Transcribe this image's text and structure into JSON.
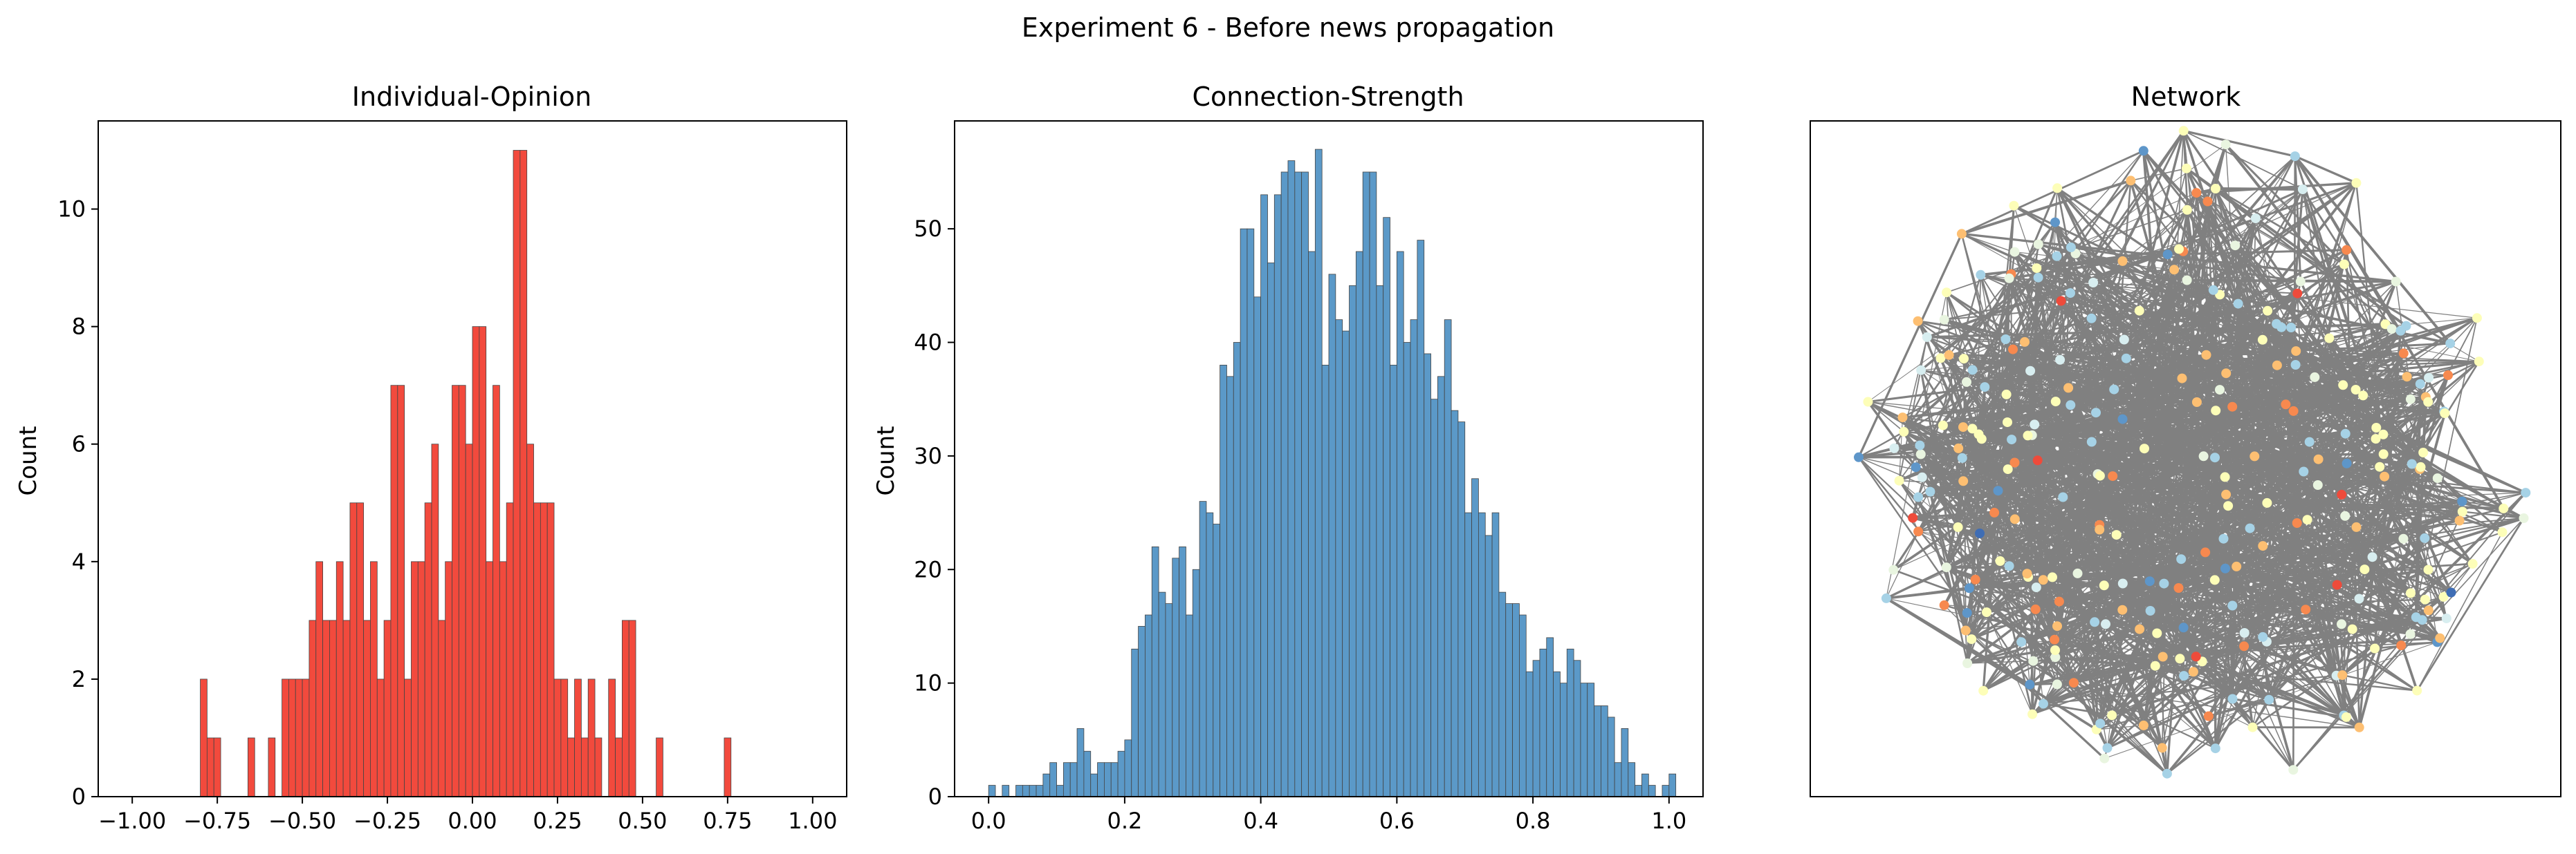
{
  "figure": {
    "title": "Experiment 6 - Before news propagation"
  },
  "chart_data": [
    {
      "type": "bar",
      "title": "Individual-Opinion",
      "xlabel": "",
      "ylabel": "Count",
      "xlim": [
        -1.1,
        1.1
      ],
      "ylim": [
        0,
        11.5
      ],
      "x_ticks": [
        -1.0,
        -0.75,
        -0.5,
        -0.25,
        0.0,
        0.25,
        0.5,
        0.75,
        1.0
      ],
      "x_tick_labels": [
        "−1.00",
        "−0.75",
        "−0.50",
        "−0.25",
        "0.00",
        "0.25",
        "0.50",
        "0.75",
        "1.00"
      ],
      "y_ticks": [
        0,
        2,
        4,
        6,
        8,
        10
      ],
      "y_tick_labels": [
        "0",
        "2",
        "4",
        "6",
        "8",
        "10"
      ],
      "bin_start": -1.0,
      "bin_width": 0.02,
      "values": [
        0,
        0,
        0,
        0,
        0,
        0,
        0,
        0,
        0,
        0,
        2,
        1,
        1,
        0,
        0,
        0,
        0,
        1,
        0,
        0,
        1,
        0,
        2,
        2,
        2,
        2,
        3,
        4,
        3,
        3,
        4,
        3,
        5,
        5,
        3,
        4,
        2,
        3,
        7,
        7,
        2,
        4,
        4,
        5,
        6,
        3,
        4,
        7,
        7,
        6,
        8,
        8,
        4,
        7,
        4,
        5,
        11,
        11,
        6,
        5,
        5,
        5,
        2,
        2,
        1,
        2,
        1,
        2,
        1,
        0,
        2,
        1,
        3,
        3,
        0,
        0,
        0,
        1,
        0,
        0,
        0,
        0,
        0,
        0,
        0,
        0,
        0,
        1,
        0,
        0,
        0,
        0,
        0,
        0,
        0,
        0,
        0,
        0,
        0,
        0
      ],
      "bar_color": "#f24a3d",
      "grid": false
    },
    {
      "type": "bar",
      "title": "Connection-Strength",
      "xlabel": "",
      "ylabel": "Count",
      "xlim": [
        -0.05,
        1.05
      ],
      "ylim": [
        0,
        59.5
      ],
      "x_ticks": [
        0.0,
        0.2,
        0.4,
        0.6,
        0.8,
        1.0
      ],
      "x_tick_labels": [
        "0.0",
        "0.2",
        "0.4",
        "0.6",
        "0.8",
        "1.0"
      ],
      "y_ticks": [
        0,
        10,
        20,
        30,
        40,
        50
      ],
      "y_tick_labels": [
        "0",
        "10",
        "20",
        "30",
        "40",
        "50"
      ],
      "bin_start": 0.0,
      "bin_width": 0.01,
      "values": [
        1,
        0,
        1,
        0,
        1,
        1,
        1,
        1,
        2,
        3,
        1,
        3,
        3,
        6,
        4,
        2,
        3,
        3,
        3,
        4,
        5,
        13,
        15,
        16,
        22,
        18,
        17,
        21,
        22,
        16,
        20,
        26,
        25,
        24,
        38,
        37,
        40,
        50,
        50,
        44,
        53,
        47,
        53,
        55,
        56,
        55,
        55,
        48,
        57,
        38,
        46,
        42,
        41,
        45,
        48,
        55,
        55,
        45,
        51,
        38,
        48,
        40,
        42,
        49,
        39,
        35,
        37,
        42,
        34,
        33,
        25,
        28,
        25,
        23,
        25,
        18,
        17,
        17,
        16,
        11,
        12,
        13,
        14,
        11,
        10,
        13,
        12,
        10,
        10,
        8,
        8,
        7,
        3,
        6,
        3,
        1,
        2,
        1,
        0,
        1,
        2
      ],
      "bar_color": "#5b99c8",
      "grid": false
    }
  ],
  "network": {
    "title": "Network",
    "node_colors": [
      "#fdfeb8",
      "#a6d2e6",
      "#fdbf72",
      "#f7894f",
      "#e9f5e0",
      "#d8eef0",
      "#5e96c9",
      "#ee4b3b",
      "#3f6db4"
    ],
    "edge_color": "#808080"
  }
}
